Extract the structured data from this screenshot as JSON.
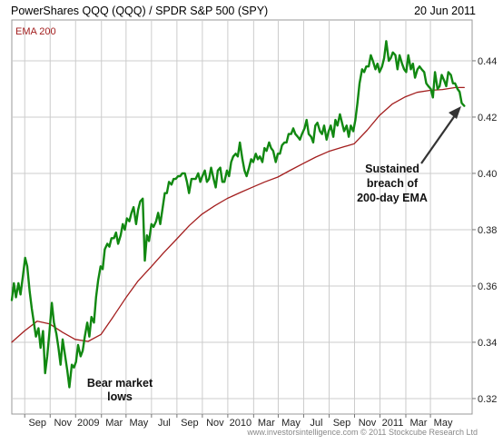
{
  "header": {
    "title": "PowerShares QQQ (QQQ) / SPDR S&P 500 (SPY)",
    "date": "20 Jun 2011"
  },
  "footer": {
    "credit": "www.investorsintelligence.com  © 2011 Stockcube Research Ltd"
  },
  "annotations": {
    "bear_line1": "Bear market",
    "bear_line2": "lows",
    "breach_line1": "Sustained",
    "breach_line2": "breach of",
    "breach_line3": "200-day EMA"
  },
  "colors": {
    "ratio_line": "#118811",
    "ema_line": "#a31e1e",
    "legend_text": "#a31e1e",
    "grid": "#cccccc",
    "arrow": "#333333"
  },
  "chart_data": {
    "type": "line",
    "title": "PowerShares QQQ (QQQ) / SPDR S&P 500 (SPY)",
    "legend": [
      {
        "name": "EMA 200",
        "position": "top-left"
      }
    ],
    "x_tick_labels": [
      "Sep",
      "Nov",
      "2009",
      "Mar",
      "May",
      "Jul",
      "Sep",
      "Nov",
      "2010",
      "Mar",
      "May",
      "Jul",
      "Sep",
      "Nov",
      "2011",
      "Mar",
      "May"
    ],
    "x_range": [
      "2008-07-01",
      "2011-07-10"
    ],
    "y_ticks": [
      "0.32",
      "0.34",
      "0.36",
      "0.38",
      "0.40",
      "0.42",
      "0.44"
    ],
    "ylim": [
      0.3145,
      0.4545
    ],
    "y_axis_side": "right",
    "grid": true,
    "series": [
      {
        "name": "PowerShares QQQ (QQQ) / SPDR S&P 500 (SPY)",
        "points": [
          [
            "2008-07-01",
            0.355
          ],
          [
            "2008-07-06",
            0.361
          ],
          [
            "2008-07-11",
            0.356
          ],
          [
            "2008-07-17",
            0.361
          ],
          [
            "2008-07-22",
            0.357
          ],
          [
            "2008-07-28",
            0.364
          ],
          [
            "2008-08-02",
            0.37
          ],
          [
            "2008-08-07",
            0.367
          ],
          [
            "2008-08-13",
            0.358
          ],
          [
            "2008-08-18",
            0.352
          ],
          [
            "2008-08-23",
            0.347
          ],
          [
            "2008-08-28",
            0.342
          ],
          [
            "2008-09-03",
            0.345
          ],
          [
            "2008-09-08",
            0.338
          ],
          [
            "2008-09-14",
            0.344
          ],
          [
            "2008-09-19",
            0.329
          ],
          [
            "2008-09-24",
            0.335
          ],
          [
            "2008-09-29",
            0.343
          ],
          [
            "2008-10-05",
            0.354
          ],
          [
            "2008-10-10",
            0.347
          ],
          [
            "2008-10-16",
            0.343
          ],
          [
            "2008-10-21",
            0.338
          ],
          [
            "2008-10-26",
            0.332
          ],
          [
            "2008-10-31",
            0.341
          ],
          [
            "2008-11-06",
            0.335
          ],
          [
            "2008-11-11",
            0.33
          ],
          [
            "2008-11-16",
            0.324
          ],
          [
            "2008-11-22",
            0.332
          ],
          [
            "2008-11-27",
            0.331
          ],
          [
            "2008-12-02",
            0.333
          ],
          [
            "2008-12-07",
            0.339
          ],
          [
            "2008-12-13",
            0.335
          ],
          [
            "2008-12-18",
            0.337
          ],
          [
            "2008-12-23",
            0.342
          ],
          [
            "2008-12-29",
            0.347
          ],
          [
            "2009-01-03",
            0.342
          ],
          [
            "2009-01-08",
            0.349
          ],
          [
            "2009-01-14",
            0.347
          ],
          [
            "2009-01-19",
            0.356
          ],
          [
            "2009-01-24",
            0.362
          ],
          [
            "2009-01-30",
            0.367
          ],
          [
            "2009-02-04",
            0.366
          ],
          [
            "2009-02-09",
            0.373
          ],
          [
            "2009-02-15",
            0.375
          ],
          [
            "2009-02-20",
            0.374
          ],
          [
            "2009-02-25",
            0.377
          ],
          [
            "2009-03-03",
            0.377
          ],
          [
            "2009-03-08",
            0.379
          ],
          [
            "2009-03-13",
            0.375
          ],
          [
            "2009-03-19",
            0.378
          ],
          [
            "2009-03-24",
            0.382
          ],
          [
            "2009-03-29",
            0.38
          ],
          [
            "2009-04-03",
            0.384
          ],
          [
            "2009-04-09",
            0.383
          ],
          [
            "2009-04-14",
            0.386
          ],
          [
            "2009-04-19",
            0.388
          ],
          [
            "2009-04-25",
            0.382
          ],
          [
            "2009-04-30",
            0.387
          ],
          [
            "2009-05-05",
            0.39
          ],
          [
            "2009-05-11",
            0.391
          ],
          [
            "2009-05-16",
            0.369
          ],
          [
            "2009-05-21",
            0.378
          ],
          [
            "2009-05-26",
            0.376
          ],
          [
            "2009-06-01",
            0.382
          ],
          [
            "2009-06-06",
            0.381
          ],
          [
            "2009-06-12",
            0.383
          ],
          [
            "2009-06-17",
            0.386
          ],
          [
            "2009-06-22",
            0.382
          ],
          [
            "2009-06-27",
            0.387
          ],
          [
            "2009-07-03",
            0.393
          ],
          [
            "2009-07-08",
            0.393
          ],
          [
            "2009-07-13",
            0.397
          ],
          [
            "2009-07-19",
            0.396
          ],
          [
            "2009-07-24",
            0.398
          ],
          [
            "2009-07-29",
            0.398
          ],
          [
            "2009-08-04",
            0.399
          ],
          [
            "2009-08-09",
            0.399
          ],
          [
            "2009-08-14",
            0.4
          ],
          [
            "2009-08-20",
            0.4
          ],
          [
            "2009-08-25",
            0.397
          ],
          [
            "2009-08-30",
            0.393
          ],
          [
            "2009-09-05",
            0.398
          ],
          [
            "2009-09-10",
            0.398
          ],
          [
            "2009-09-15",
            0.398
          ],
          [
            "2009-09-21",
            0.4
          ],
          [
            "2009-09-26",
            0.397
          ],
          [
            "2009-10-01",
            0.399
          ],
          [
            "2009-10-07",
            0.401
          ],
          [
            "2009-10-12",
            0.397
          ],
          [
            "2009-10-17",
            0.398
          ],
          [
            "2009-10-22",
            0.402
          ],
          [
            "2009-10-28",
            0.398
          ],
          [
            "2009-11-02",
            0.395
          ],
          [
            "2009-11-07",
            0.401
          ],
          [
            "2009-11-13",
            0.402
          ],
          [
            "2009-11-18",
            0.397
          ],
          [
            "2009-11-23",
            0.397
          ],
          [
            "2009-11-29",
            0.401
          ],
          [
            "2009-12-04",
            0.399
          ],
          [
            "2009-12-09",
            0.404
          ],
          [
            "2009-12-14",
            0.406
          ],
          [
            "2009-12-20",
            0.407
          ],
          [
            "2009-12-25",
            0.406
          ],
          [
            "2009-12-30",
            0.411
          ],
          [
            "2010-01-05",
            0.405
          ],
          [
            "2010-01-10",
            0.401
          ],
          [
            "2010-01-15",
            0.399
          ],
          [
            "2010-01-21",
            0.402
          ],
          [
            "2010-01-26",
            0.405
          ],
          [
            "2010-01-31",
            0.404
          ],
          [
            "2010-02-06",
            0.407
          ],
          [
            "2010-02-11",
            0.405
          ],
          [
            "2010-02-16",
            0.406
          ],
          [
            "2010-02-22",
            0.404
          ],
          [
            "2010-02-27",
            0.409
          ],
          [
            "2010-03-04",
            0.408
          ],
          [
            "2010-03-10",
            0.411
          ],
          [
            "2010-03-15",
            0.409
          ],
          [
            "2010-03-20",
            0.408
          ],
          [
            "2010-03-26",
            0.404
          ],
          [
            "2010-03-31",
            0.407
          ],
          [
            "2010-04-05",
            0.407
          ],
          [
            "2010-04-10",
            0.41
          ],
          [
            "2010-04-16",
            0.411
          ],
          [
            "2010-04-21",
            0.411
          ],
          [
            "2010-04-26",
            0.414
          ],
          [
            "2010-05-02",
            0.414
          ],
          [
            "2010-05-07",
            0.416
          ],
          [
            "2010-05-12",
            0.414
          ],
          [
            "2010-05-18",
            0.413
          ],
          [
            "2010-05-23",
            0.412
          ],
          [
            "2010-05-28",
            0.414
          ],
          [
            "2010-06-03",
            0.416
          ],
          [
            "2010-06-08",
            0.419
          ],
          [
            "2010-06-13",
            0.414
          ],
          [
            "2010-06-19",
            0.413
          ],
          [
            "2010-06-24",
            0.411
          ],
          [
            "2010-06-29",
            0.417
          ],
          [
            "2010-07-04",
            0.418
          ],
          [
            "2010-07-10",
            0.415
          ],
          [
            "2010-07-15",
            0.414
          ],
          [
            "2010-07-20",
            0.417
          ],
          [
            "2010-07-26",
            0.412
          ],
          [
            "2010-07-31",
            0.415
          ],
          [
            "2010-08-05",
            0.417
          ],
          [
            "2010-08-11",
            0.413
          ],
          [
            "2010-08-16",
            0.419
          ],
          [
            "2010-08-21",
            0.417
          ],
          [
            "2010-08-27",
            0.421
          ],
          [
            "2010-09-01",
            0.418
          ],
          [
            "2010-09-06",
            0.415
          ],
          [
            "2010-09-12",
            0.417
          ],
          [
            "2010-09-17",
            0.413
          ],
          [
            "2010-09-22",
            0.417
          ],
          [
            "2010-09-28",
            0.415
          ],
          [
            "2010-10-03",
            0.419
          ],
          [
            "2010-10-08",
            0.425
          ],
          [
            "2010-10-13",
            0.432
          ],
          [
            "2010-10-19",
            0.437
          ],
          [
            "2010-10-24",
            0.436
          ],
          [
            "2010-10-29",
            0.438
          ],
          [
            "2010-11-04",
            0.438
          ],
          [
            "2010-11-09",
            0.442
          ],
          [
            "2010-11-14",
            0.44
          ],
          [
            "2010-11-20",
            0.437
          ],
          [
            "2010-11-25",
            0.439
          ],
          [
            "2010-11-30",
            0.436
          ],
          [
            "2010-12-06",
            0.438
          ],
          [
            "2010-12-11",
            0.441
          ],
          [
            "2010-12-16",
            0.447
          ],
          [
            "2010-12-22",
            0.44
          ],
          [
            "2010-12-27",
            0.441
          ],
          [
            "2011-01-01",
            0.443
          ],
          [
            "2011-01-07",
            0.442
          ],
          [
            "2011-01-12",
            0.437
          ],
          [
            "2011-01-17",
            0.442
          ],
          [
            "2011-01-23",
            0.439
          ],
          [
            "2011-01-28",
            0.437
          ],
          [
            "2011-02-02",
            0.436
          ],
          [
            "2011-02-07",
            0.442
          ],
          [
            "2011-02-13",
            0.437
          ],
          [
            "2011-02-18",
            0.439
          ],
          [
            "2011-02-23",
            0.434
          ],
          [
            "2011-03-01",
            0.437
          ],
          [
            "2011-03-06",
            0.438
          ],
          [
            "2011-03-11",
            0.437
          ],
          [
            "2011-03-17",
            0.436
          ],
          [
            "2011-03-22",
            0.432
          ],
          [
            "2011-03-27",
            0.431
          ],
          [
            "2011-04-02",
            0.43
          ],
          [
            "2011-04-07",
            0.427
          ],
          [
            "2011-04-12",
            0.436
          ],
          [
            "2011-04-18",
            0.43
          ],
          [
            "2011-04-23",
            0.431
          ],
          [
            "2011-04-28",
            0.435
          ],
          [
            "2011-05-04",
            0.433
          ],
          [
            "2011-05-09",
            0.431
          ],
          [
            "2011-05-14",
            0.436
          ],
          [
            "2011-05-20",
            0.435
          ],
          [
            "2011-05-25",
            0.432
          ],
          [
            "2011-05-30",
            0.432
          ],
          [
            "2011-06-05",
            0.43
          ],
          [
            "2011-06-10",
            0.429
          ],
          [
            "2011-06-15",
            0.425
          ],
          [
            "2011-06-21",
            0.424
          ]
        ]
      },
      {
        "name": "EMA 200",
        "points": [
          [
            "2008-07-01",
            0.34
          ],
          [
            "2008-07-31",
            0.344
          ],
          [
            "2008-08-31",
            0.3475
          ],
          [
            "2008-09-30",
            0.3465
          ],
          [
            "2008-10-31",
            0.3435
          ],
          [
            "2008-11-30",
            0.341
          ],
          [
            "2008-12-31",
            0.3403
          ],
          [
            "2009-01-31",
            0.3428
          ],
          [
            "2009-02-28",
            0.3488
          ],
          [
            "2009-03-31",
            0.3557
          ],
          [
            "2009-04-30",
            0.3618
          ],
          [
            "2009-05-31",
            0.3668
          ],
          [
            "2009-06-30",
            0.3718
          ],
          [
            "2009-07-31",
            0.3766
          ],
          [
            "2009-08-31",
            0.3815
          ],
          [
            "2009-09-30",
            0.3855
          ],
          [
            "2009-10-31",
            0.3885
          ],
          [
            "2009-11-30",
            0.3911
          ],
          [
            "2009-12-31",
            0.3932
          ],
          [
            "2010-01-31",
            0.3952
          ],
          [
            "2010-02-28",
            0.397
          ],
          [
            "2010-03-31",
            0.3987
          ],
          [
            "2010-04-30",
            0.4011
          ],
          [
            "2010-05-31",
            0.4035
          ],
          [
            "2010-06-30",
            0.4058
          ],
          [
            "2010-07-31",
            0.4078
          ],
          [
            "2010-08-31",
            0.4092
          ],
          [
            "2010-09-30",
            0.4105
          ],
          [
            "2010-10-31",
            0.4153
          ],
          [
            "2010-11-30",
            0.4206
          ],
          [
            "2010-12-31",
            0.4247
          ],
          [
            "2011-01-31",
            0.4272
          ],
          [
            "2011-02-28",
            0.4288
          ],
          [
            "2011-03-31",
            0.4295
          ],
          [
            "2011-04-30",
            0.4298
          ],
          [
            "2011-05-31",
            0.4305
          ],
          [
            "2011-06-21",
            0.4305
          ]
        ]
      }
    ]
  }
}
